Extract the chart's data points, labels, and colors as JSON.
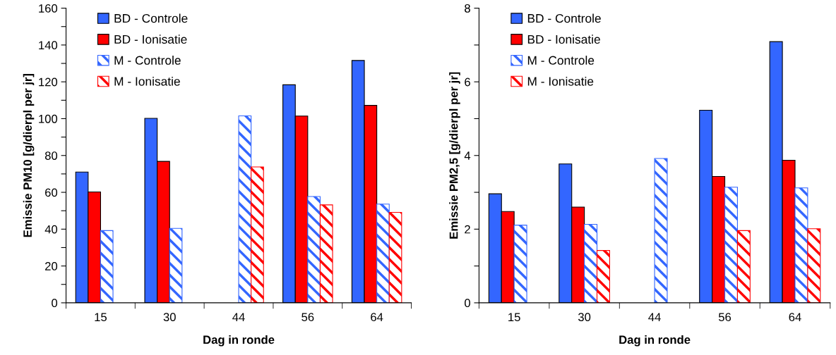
{
  "chart_data": [
    {
      "type": "bar",
      "xlabel": "Dag in ronde",
      "ylabel": "Emissie PM10 [g/dierpl per jr]",
      "categories": [
        "15",
        "30",
        "44",
        "56",
        "64"
      ],
      "ylim": [
        0,
        160
      ],
      "yticks": [
        0,
        {
          "value": 10,
          "label": null
        },
        20,
        {
          "value": 30,
          "label": null
        },
        40,
        {
          "value": 50,
          "label": null
        },
        60,
        {
          "value": 70,
          "label": null
        },
        80,
        {
          "value": 90,
          "label": null
        },
        100,
        {
          "value": 110,
          "label": null
        },
        120,
        {
          "value": 130,
          "label": null
        },
        140,
        {
          "value": 150,
          "label": null
        },
        160
      ],
      "legend": "top left",
      "grid": false,
      "series": [
        {
          "name": "BD - Controle",
          "color": "#3366ff",
          "values": [
            71.0,
            100.2,
            null,
            118.4,
            131.6
          ]
        },
        {
          "name": "BD - Ionisatie",
          "color": "#ff0000",
          "values": [
            60.2,
            76.8,
            null,
            101.4,
            107.2
          ]
        },
        {
          "name": "M - Controle",
          "color": "#3366ff",
          "values": [
            39.2,
            40.4,
            101.5,
            57.7,
            53.6
          ]
        },
        {
          "name": "M - Ionisatie",
          "color": "#ff0000",
          "values": [
            null,
            null,
            73.8,
            53.2,
            49.1
          ]
        }
      ]
    },
    {
      "type": "bar",
      "xlabel": "Dag in ronde",
      "ylabel": "Emissie PM2,5 [g/dierpl per jr]",
      "categories": [
        "15",
        "30",
        "44",
        "56",
        "64"
      ],
      "ylim": [
        0,
        8
      ],
      "yticks": [
        0,
        {
          "value": 1,
          "label": null
        },
        2,
        {
          "value": 3,
          "label": null
        },
        4,
        {
          "value": 5,
          "label": null
        },
        6,
        {
          "value": 7,
          "label": null
        },
        8
      ],
      "legend": "top left",
      "grid": false,
      "series": [
        {
          "name": "BD - Controle",
          "color": "#3366ff",
          "values": [
            2.96,
            3.77,
            null,
            5.23,
            7.09
          ]
        },
        {
          "name": "BD - Ionisatie",
          "color": "#ff0000",
          "values": [
            2.48,
            2.6,
            null,
            3.43,
            3.87
          ]
        },
        {
          "name": "M - Controle",
          "color": "#3366ff",
          "values": [
            2.11,
            2.13,
            3.92,
            3.14,
            3.12
          ]
        },
        {
          "name": "M - Ionisatie",
          "color": "#ff0000",
          "values": [
            null,
            1.42,
            null,
            1.96,
            2.01
          ]
        }
      ]
    }
  ]
}
